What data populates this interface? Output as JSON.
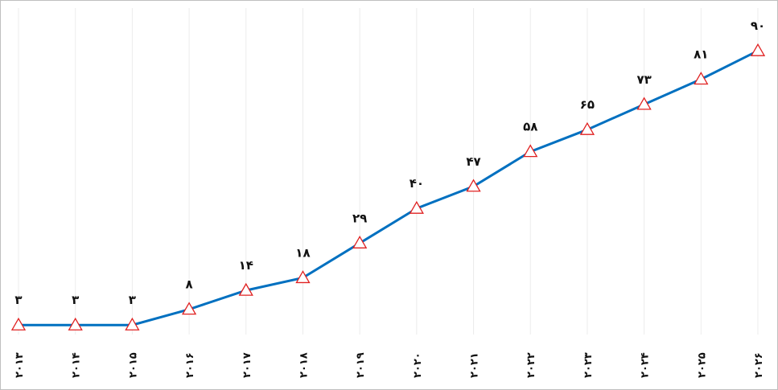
{
  "chart_data": {
    "type": "line",
    "categories": [
      "۲۰۱۳",
      "۲۰۱۴",
      "۲۰۱۵",
      "۲۰۱۶",
      "۲۰۱۷",
      "۲۰۱۸",
      "۲۰۱۹",
      "۲۰۲۰",
      "۲۰۲۱",
      "۲۰۲۲",
      "۲۰۲۳",
      "۲۰۲۴",
      "۲۰۲۵",
      "۲۰۲۶"
    ],
    "series": [
      {
        "color": "#0070c0",
        "marker_color": "#e02020",
        "values": [
          3,
          3,
          3,
          8,
          14,
          18,
          29,
          40,
          47,
          58,
          65,
          73,
          81,
          90
        ],
        "value_labels": [
          "۳",
          "۳",
          "۳",
          "۸",
          "۱۴",
          "۱۸",
          "۲۹",
          "۴۰",
          "۴۷",
          "۵۸",
          "۶۵",
          "۷۳",
          "۸۱",
          "۹۰"
        ]
      }
    ],
    "ylim": [
      0,
      100
    ],
    "grid": true
  }
}
